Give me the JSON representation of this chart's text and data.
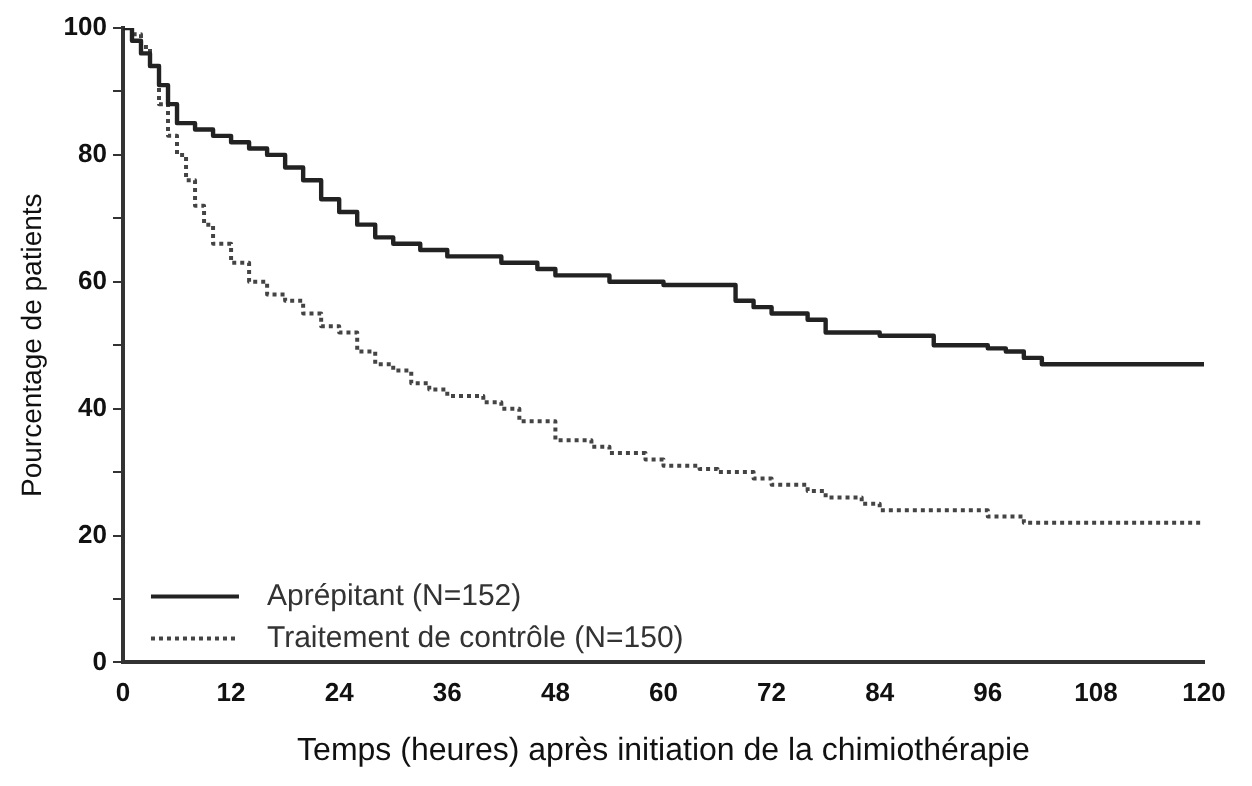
{
  "chart_data": {
    "type": "step",
    "xlabel": "Temps (heures) après initiation de la chimiothérapie",
    "ylabel": "Pourcentage de patients",
    "xlim": [
      0,
      120
    ],
    "xticks": [
      0,
      12,
      24,
      36,
      48,
      60,
      72,
      84,
      96,
      108,
      120
    ],
    "ylim": [
      0,
      100
    ],
    "yticks": [
      0,
      {
        "value": 10,
        "label": null
      },
      20,
      {
        "value": 30,
        "label": null
      },
      40,
      {
        "value": 50,
        "label": null
      },
      60,
      {
        "value": 70,
        "label": null
      },
      80,
      {
        "value": 90,
        "label": null
      },
      100
    ],
    "grid": false,
    "legend": "bottom left",
    "marker": "none",
    "series": [
      {
        "name": "Aprépitant (N=152)",
        "color": "#222222",
        "line_style": "solid",
        "x": [
          0,
          1,
          2,
          3,
          4,
          5,
          6,
          8,
          10,
          12,
          14,
          16,
          18,
          20,
          22,
          24,
          26,
          28,
          30,
          33,
          36,
          42,
          46,
          48,
          54,
          60,
          66,
          68,
          70,
          72,
          76,
          78,
          84,
          90,
          96,
          98,
          100,
          102,
          120
        ],
        "values": [
          100,
          98,
          96,
          94,
          91,
          88,
          85,
          84,
          83,
          82,
          81,
          80,
          78,
          76,
          73,
          71,
          69,
          67,
          66,
          65,
          64,
          63,
          62,
          61,
          60,
          59.5,
          59.5,
          57,
          56,
          55,
          54,
          52,
          51.5,
          50,
          49.5,
          49,
          48,
          47,
          47
        ]
      },
      {
        "name": "Traitement de contrôle (N=150)",
        "color": "#444444",
        "line_style": "dotted",
        "x": [
          0,
          1,
          2,
          3,
          4,
          5,
          6,
          7,
          8,
          9,
          10,
          12,
          14,
          16,
          18,
          20,
          22,
          24,
          26,
          28,
          30,
          32,
          34,
          36,
          40,
          42,
          44,
          48,
          52,
          54,
          58,
          60,
          64,
          66,
          70,
          72,
          76,
          78,
          82,
          84,
          90,
          96,
          100,
          102,
          120
        ],
        "values": [
          100,
          99,
          97,
          94,
          88,
          83,
          80,
          76,
          72,
          69,
          66,
          63,
          60,
          58,
          57,
          55,
          53,
          52,
          49,
          47,
          46,
          44,
          43,
          42,
          41,
          40,
          38,
          35,
          34,
          33,
          32,
          31,
          30.5,
          30,
          29,
          28,
          27,
          26,
          25,
          24,
          24,
          23,
          22,
          22,
          22
        ]
      }
    ]
  }
}
